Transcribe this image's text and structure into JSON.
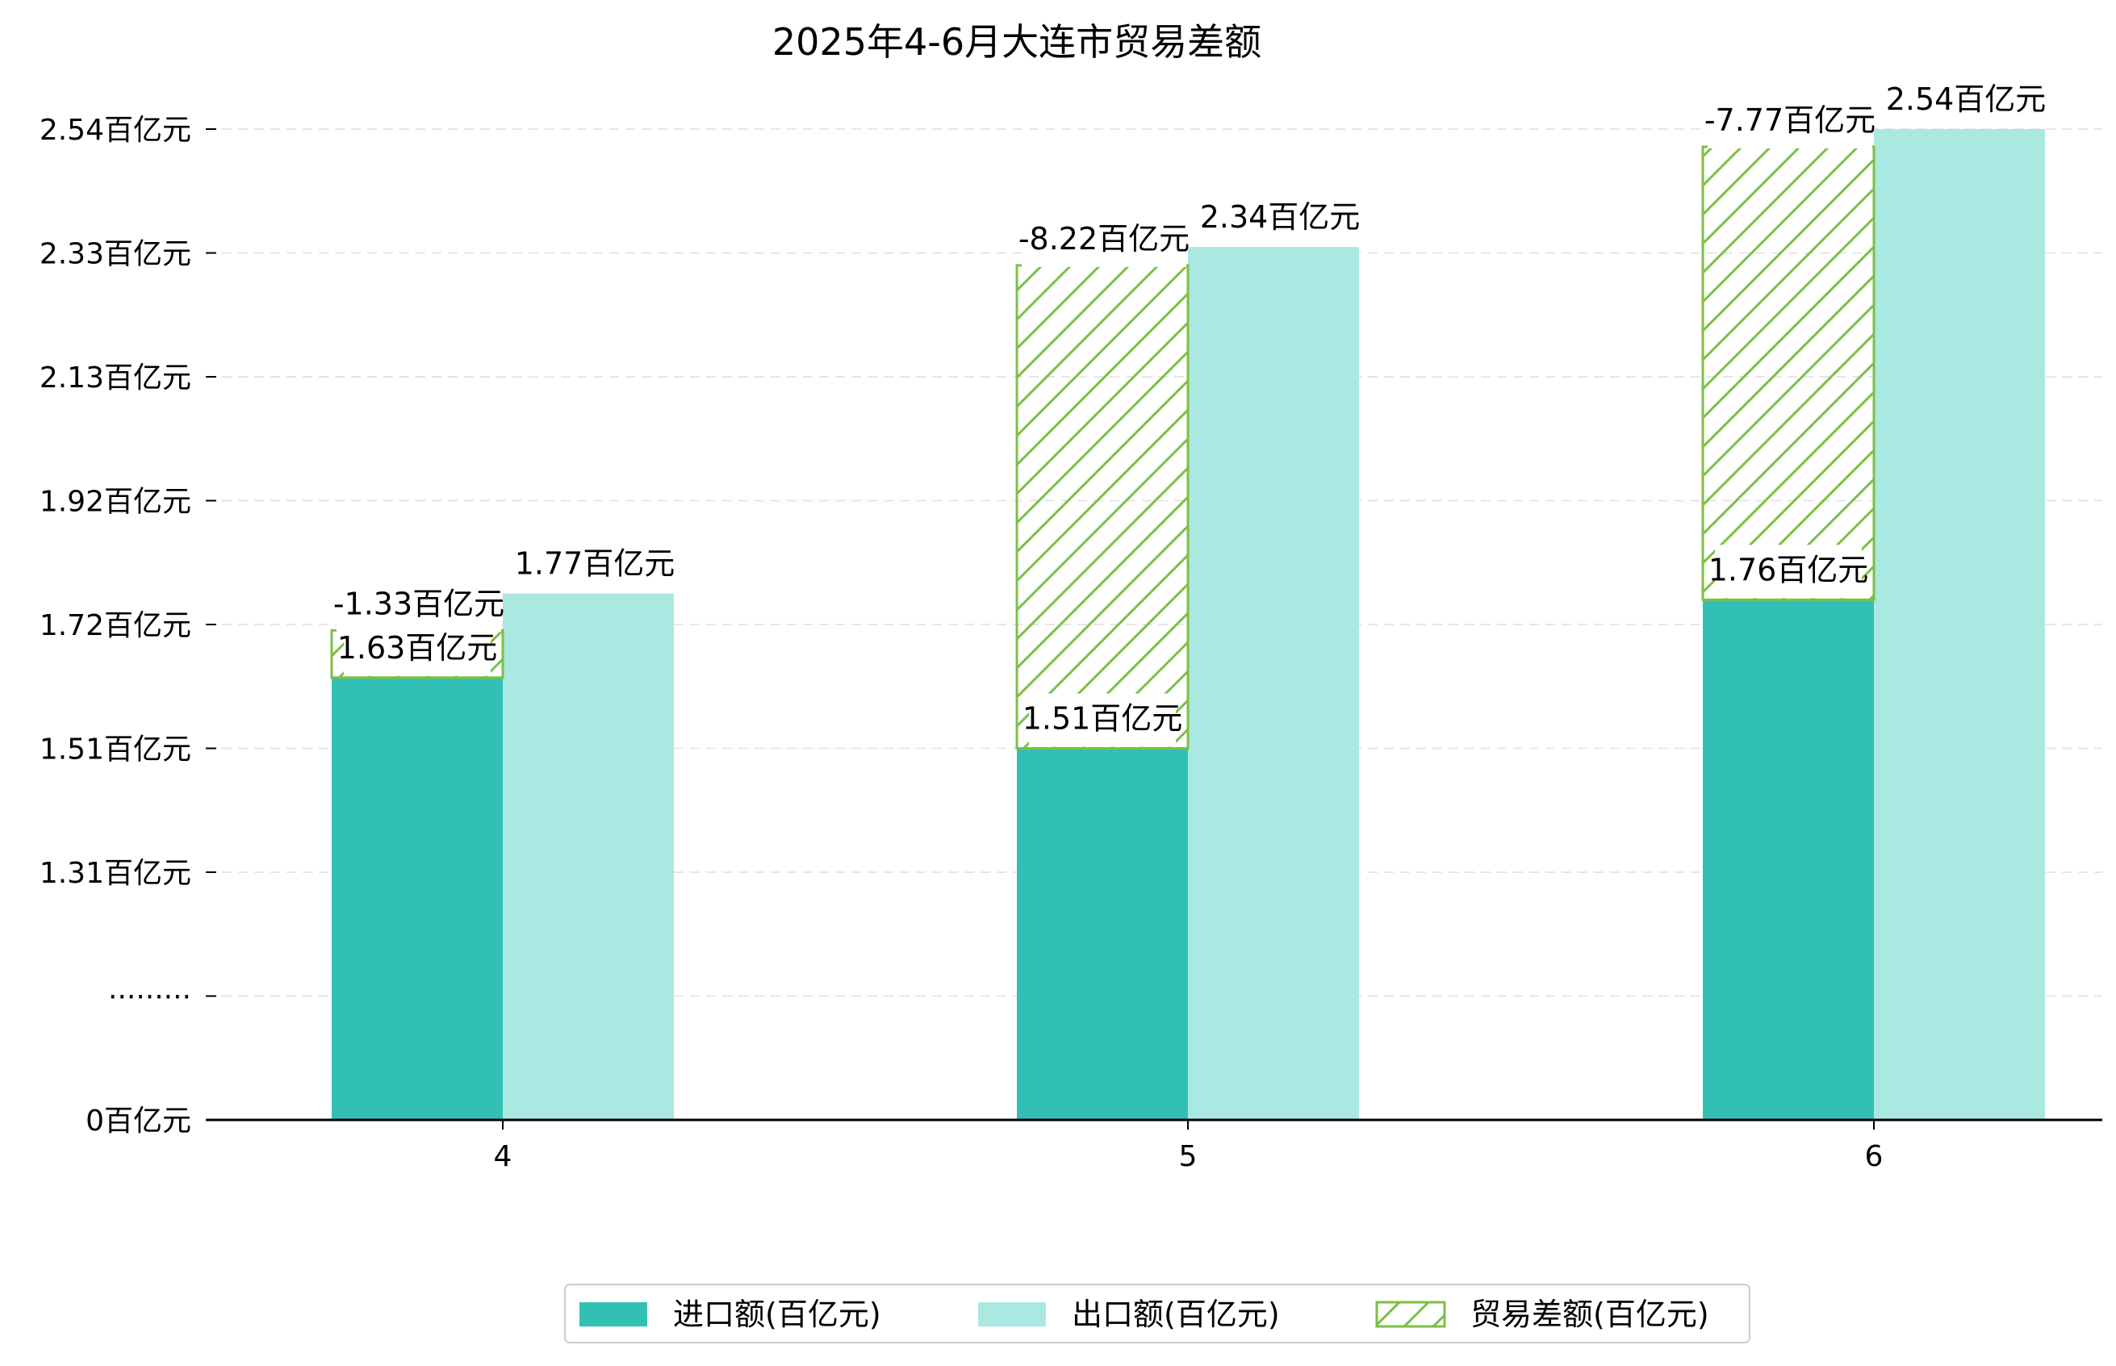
{
  "chart_data": {
    "type": "bar",
    "title": "2025年4-6月大连市贸易差额",
    "xlabel": "",
    "ylabel": "",
    "categories": [
      "4",
      "5",
      "6"
    ],
    "y_ticks": [
      {
        "value": 0,
        "label": "0百亿元"
      },
      {
        "value": 1.105,
        "label": "·········"
      },
      {
        "value": 1.31,
        "label": "1.31百亿元"
      },
      {
        "value": 1.51,
        "label": "1.51百亿元"
      },
      {
        "value": 1.72,
        "label": "1.72百亿元"
      },
      {
        "value": 1.92,
        "label": "1.92百亿元"
      },
      {
        "value": 2.13,
        "label": "2.13百亿元"
      },
      {
        "value": 2.33,
        "label": "2.33百亿元"
      },
      {
        "value": 2.54,
        "label": "2.54百亿元"
      }
    ],
    "ylim": [
      0,
      2.58
    ],
    "axis_break": true,
    "grid": true,
    "legend_position": "bottom-center",
    "series": [
      {
        "name": "进口额(百亿元)",
        "color": "#32c0b4",
        "style": "solid",
        "values": [
          1.63,
          1.51,
          1.76
        ],
        "labels": [
          "1.63百亿元",
          "1.51百亿元",
          "1.76百亿元"
        ]
      },
      {
        "name": "出口额(百亿元)",
        "color": "#aae8e2",
        "style": "solid",
        "values": [
          1.77,
          2.34,
          2.54
        ],
        "labels": [
          "1.77百亿元",
          "2.34百亿元",
          "2.54百亿元"
        ]
      },
      {
        "name": "贸易差额(百亿元)",
        "color": "#7cbf45",
        "style": "hatched",
        "values": [
          -1.33,
          -8.22,
          -7.77
        ],
        "ranges": [
          [
            1.63,
            1.71
          ],
          [
            1.51,
            2.31
          ],
          [
            1.76,
            2.51
          ]
        ],
        "labels": [
          "-1.33百亿元",
          "-8.22百亿元",
          "-7.77百亿元"
        ]
      }
    ]
  }
}
